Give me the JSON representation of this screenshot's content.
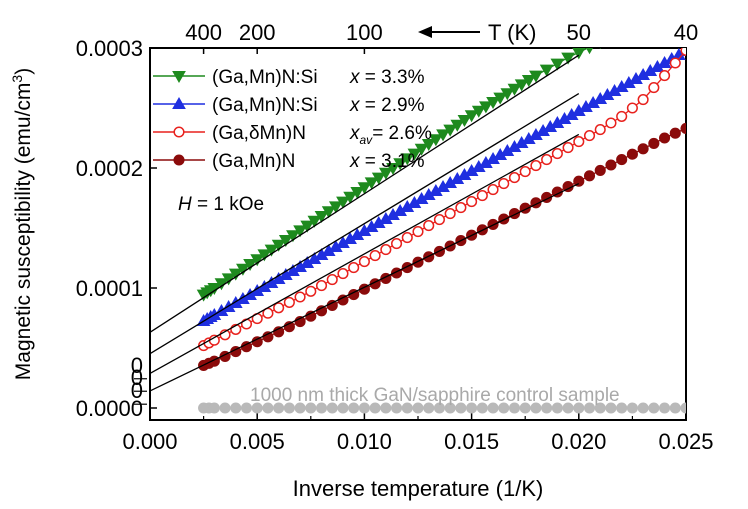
{
  "chart_data": {
    "type": "scatter",
    "xlabel": "Inverse temperature  (1/K)",
    "ylabel": "Magnetic susceptibility (emu/cm³)",
    "ylabel_parts": {
      "main": "Magnetic susceptibility (emu/cm",
      "sup": "3",
      "end": ")"
    },
    "xlim": [
      0,
      0.025
    ],
    "ylim": [
      -1e-05,
      0.0003
    ],
    "x_ticks": [
      0.0,
      0.005,
      0.01,
      0.015,
      0.02,
      0.025
    ],
    "x_tick_labels": [
      "0.000",
      "0.005",
      "0.010",
      "0.015",
      "0.020",
      "0.025"
    ],
    "y_ticks": [
      0.0,
      0.0001,
      0.0002,
      0.0003
    ],
    "y_tick_labels": [
      "0.0000",
      "0.0001",
      "0.0002",
      "0.0003"
    ],
    "offset_zero_marks": [
      {
        "label": "0",
        "y": 6.5e-06
      },
      {
        "label": "0",
        "y": 1.73e-05
      },
      {
        "label": "0",
        "y": 2.77e-05
      }
    ],
    "top_axis": {
      "label": "T (K)",
      "ticks": [
        {
          "label": "400",
          "x": 0.0025
        },
        {
          "label": "200",
          "x": 0.005
        },
        {
          "label": "100",
          "x": 0.01
        },
        {
          "label": "50",
          "x": 0.02
        },
        {
          "label": "40",
          "x": 0.025
        }
      ]
    },
    "legend_position": "top-left",
    "annotations": {
      "field": {
        "italic": "H",
        "text": " = 1 kOe"
      },
      "control": "1000 nm thick GaN/sapphire control sample"
    },
    "series": [
      {
        "name": "(Ga,Mn)N:Si",
        "legend_var": "x",
        "legend_sub": "",
        "legend_value": " = 3.3%",
        "color": "#1e8a1e",
        "marker": "triangle-down",
        "filled": true,
        "points": [
          [
            0.0025,
            9.45e-05
          ],
          [
            0.003,
            0.0001
          ],
          [
            0.004,
            0.000112
          ],
          [
            0.005,
            0.000124
          ],
          [
            0.006,
            0.000136
          ],
          [
            0.007,
            0.000148
          ],
          [
            0.008,
            0.00016
          ],
          [
            0.009,
            0.000172
          ],
          [
            0.01,
            0.000184
          ],
          [
            0.011,
            0.000196
          ],
          [
            0.012,
            0.000208
          ],
          [
            0.013,
            0.00022
          ],
          [
            0.014,
            0.000232
          ],
          [
            0.015,
            0.000244
          ],
          [
            0.016,
            0.000255
          ],
          [
            0.017,
            0.000266
          ],
          [
            0.018,
            0.000277
          ],
          [
            0.0195,
            0.000292
          ],
          [
            0.021,
            0.000305
          ],
          [
            0.0225,
            0.000316
          ]
        ],
        "fit": [
          [
            0.0,
            6.31e-05
          ],
          [
            0.02,
            0.000294
          ]
        ]
      },
      {
        "name": "(Ga,Mn)N:Si",
        "legend_var": "x",
        "legend_sub": "",
        "legend_value": " = 2.9%",
        "color": "#1f2fe0",
        "marker": "triangle-up",
        "filled": true,
        "points": [
          [
            0.0025,
            7.25e-05
          ],
          [
            0.003,
            7.75e-05
          ],
          [
            0.004,
            8.75e-05
          ],
          [
            0.005,
            9.75e-05
          ],
          [
            0.006,
            0.0001075
          ],
          [
            0.007,
            0.0001175
          ],
          [
            0.008,
            0.0001275
          ],
          [
            0.009,
            0.0001375
          ],
          [
            0.01,
            0.0001475
          ],
          [
            0.011,
            0.0001575
          ],
          [
            0.012,
            0.0001675
          ],
          [
            0.013,
            0.0001775
          ],
          [
            0.014,
            0.0001875
          ],
          [
            0.015,
            0.0001975
          ],
          [
            0.016,
            0.0002075
          ],
          [
            0.017,
            0.0002175
          ],
          [
            0.018,
            0.0002275
          ],
          [
            0.019,
            0.0002375
          ],
          [
            0.02,
            0.0002475
          ],
          [
            0.021,
            0.0002575
          ],
          [
            0.022,
            0.0002675
          ],
          [
            0.023,
            0.0002775
          ],
          [
            0.024,
            0.0002875
          ],
          [
            0.025,
            0.0002975
          ]
        ],
        "fit": [
          [
            0.0,
            4.53e-05
          ],
          [
            0.02,
            0.000262
          ]
        ]
      },
      {
        "name": "(Ga,δMn)N",
        "legend_var": "x",
        "legend_sub": "av",
        "legend_value": "= 2.6%",
        "color": "#e8211d",
        "marker": "circle",
        "filled": false,
        "points": [
          [
            0.0025,
            5.2e-05
          ],
          [
            0.003,
            5.65e-05
          ],
          [
            0.004,
            6.55e-05
          ],
          [
            0.005,
            7.45e-05
          ],
          [
            0.006,
            8.35e-05
          ],
          [
            0.007,
            9.25e-05
          ],
          [
            0.008,
            0.000102
          ],
          [
            0.009,
            0.000112
          ],
          [
            0.01,
            0.000122
          ],
          [
            0.011,
            0.000132
          ],
          [
            0.012,
            0.000142
          ],
          [
            0.013,
            0.000152
          ],
          [
            0.014,
            0.000162
          ],
          [
            0.015,
            0.000172
          ],
          [
            0.016,
            0.000182
          ],
          [
            0.017,
            0.000192
          ],
          [
            0.018,
            0.000202
          ],
          [
            0.019,
            0.000212
          ],
          [
            0.02,
            0.000222
          ],
          [
            0.021,
            0.000232
          ],
          [
            0.022,
            0.000243
          ],
          [
            0.023,
            0.000257
          ],
          [
            0.024,
            0.000277
          ],
          [
            0.025,
            0.000298
          ]
        ],
        "fit": [
          [
            0.0,
            2.88e-05
          ],
          [
            0.02,
            0.000228
          ]
        ]
      },
      {
        "name": "(Ga,Mn)N",
        "legend_var": "x",
        "legend_sub": "",
        "legend_value": " = 3.1%",
        "color": "#8b0b0b",
        "marker": "circle",
        "filled": true,
        "points": [
          [
            0.0025,
            3.55e-05
          ],
          [
            0.003,
            3.9e-05
          ],
          [
            0.004,
            4.7e-05
          ],
          [
            0.005,
            5.52e-05
          ],
          [
            0.006,
            6.35e-05
          ],
          [
            0.007,
            7.2e-05
          ],
          [
            0.008,
            8.1e-05
          ],
          [
            0.009,
            9e-05
          ],
          [
            0.01,
            9.9e-05
          ],
          [
            0.011,
            0.000108
          ],
          [
            0.012,
            0.000117
          ],
          [
            0.013,
            0.000126
          ],
          [
            0.014,
            0.000135
          ],
          [
            0.015,
            0.000144
          ],
          [
            0.016,
            0.000153
          ],
          [
            0.017,
            0.000162
          ],
          [
            0.018,
            0.000171
          ],
          [
            0.019,
            0.00018
          ],
          [
            0.02,
            0.000189
          ],
          [
            0.021,
            0.000198
          ],
          [
            0.022,
            0.000207
          ],
          [
            0.023,
            0.000216
          ],
          [
            0.024,
            0.000225
          ],
          [
            0.025,
            0.000233
          ]
        ],
        "fit": [
          [
            0.0,
            1.42e-05
          ],
          [
            0.02,
            0.000187
          ]
        ]
      },
      {
        "name": "1000 nm thick GaN/sapphire control sample",
        "color": "#b9b9b9",
        "marker": "circle",
        "filled": true,
        "in_legend": false,
        "points": [
          [
            0.0025,
            0.0
          ],
          [
            0.003,
            0.0
          ],
          [
            0.004,
            0.0
          ],
          [
            0.005,
            0.0
          ],
          [
            0.006,
            0.0
          ],
          [
            0.007,
            0.0
          ],
          [
            0.008,
            0.0
          ],
          [
            0.009,
            0.0
          ],
          [
            0.01,
            0.0
          ],
          [
            0.011,
            0.0
          ],
          [
            0.012,
            0.0
          ],
          [
            0.013,
            0.0
          ],
          [
            0.014,
            0.0
          ],
          [
            0.015,
            0.0
          ],
          [
            0.016,
            0.0
          ],
          [
            0.017,
            0.0
          ],
          [
            0.018,
            0.0
          ],
          [
            0.019,
            0.0
          ],
          [
            0.02,
            0.0
          ],
          [
            0.021,
            0.0
          ],
          [
            0.022,
            0.0
          ],
          [
            0.023,
            0.0
          ],
          [
            0.024,
            0.0
          ],
          [
            0.025,
            0.0
          ]
        ]
      }
    ]
  }
}
